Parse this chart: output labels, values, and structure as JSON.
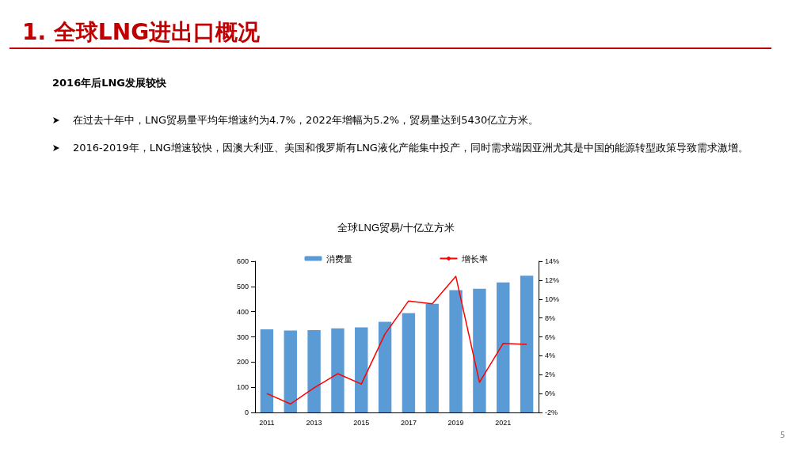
{
  "chart_data": {
    "type": "bar",
    "title": "全球LNG贸易/十亿立方米",
    "annotations": [
      "1. 全球LNG进出口概况",
      "2016年后LNG发展较快",
      "在过去十年中，LNG贸易量平均年增速约为4.7%，2022年增幅为5.2%，贸易量达到5430亿立方米。",
      "2016-2019年，LNG增速较快，因澳大利亚、美国和俄罗斯有LNG液化产能集中投产，同时需求端因亚洲尤其是中国的能源转型政策导致需求激增。",
      "5"
    ],
    "categories": [
      "2011",
      null,
      "2013",
      null,
      "2015",
      null,
      "2017",
      null,
      "2019",
      null,
      "2021",
      null
    ],
    "series": [
      {
        "name": "消费量",
        "color": "#5b9bd5",
        "values": [
          330,
          325,
          327,
          334,
          338,
          360,
          394,
          431,
          485,
          491,
          516,
          543
        ]
      },
      {
        "name": "增长率",
        "type": "line",
        "axis": "y2",
        "color": "#ff0000",
        "values": [
          0,
          -1.1,
          0.6,
          2.1,
          1.0,
          6.3,
          9.8,
          9.5,
          12.4,
          1.2,
          5.3,
          5.2
        ]
      }
    ],
    "ylim": [
      0,
      600
    ],
    "yticks": [
      0,
      100,
      200,
      300,
      400,
      500,
      600
    ],
    "y2lim": [
      -2,
      14
    ],
    "y2ticks": [
      {
        "value": -2,
        "label": "-2%"
      },
      {
        "value": 0,
        "label": "0%"
      },
      {
        "value": 2,
        "label": "2%"
      },
      {
        "value": 4,
        "label": "4%"
      },
      {
        "value": 6,
        "label": "6%"
      },
      {
        "value": 8,
        "label": "8%"
      },
      {
        "value": 10,
        "label": "10%"
      },
      {
        "value": 12,
        "label": "12%"
      },
      {
        "value": 14,
        "label": "14%"
      }
    ],
    "grid": false,
    "legend": "top",
    "marker": "none",
    "line_style": "solid"
  }
}
